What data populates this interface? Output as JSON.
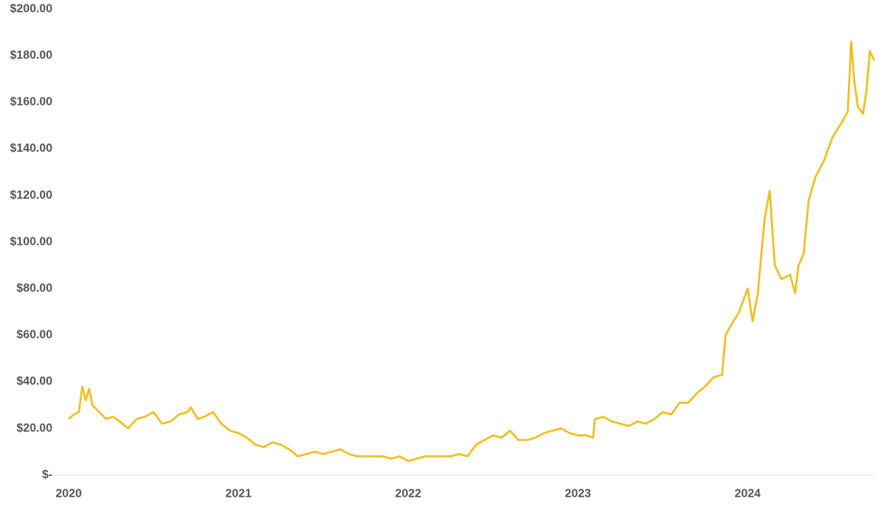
{
  "chart_data": {
    "type": "line",
    "x": [
      2020.0,
      2020.03,
      2020.06,
      2020.08,
      2020.1,
      2020.12,
      2020.14,
      2020.18,
      2020.22,
      2020.26,
      2020.3,
      2020.35,
      2020.4,
      2020.45,
      2020.5,
      2020.55,
      2020.6,
      2020.65,
      2020.7,
      2020.72,
      2020.76,
      2020.8,
      2020.85,
      2020.9,
      2020.95,
      2021.0,
      2021.05,
      2021.1,
      2021.15,
      2021.2,
      2021.25,
      2021.3,
      2021.35,
      2021.4,
      2021.45,
      2021.5,
      2021.55,
      2021.6,
      2021.65,
      2021.7,
      2021.75,
      2021.8,
      2021.85,
      2021.9,
      2021.95,
      2022.0,
      2022.05,
      2022.1,
      2022.15,
      2022.2,
      2022.25,
      2022.3,
      2022.35,
      2022.4,
      2022.45,
      2022.5,
      2022.55,
      2022.6,
      2022.65,
      2022.7,
      2022.75,
      2022.8,
      2022.85,
      2022.9,
      2022.95,
      2023.0,
      2023.05,
      2023.09,
      2023.1,
      2023.15,
      2023.2,
      2023.25,
      2023.3,
      2023.35,
      2023.4,
      2023.45,
      2023.5,
      2023.55,
      2023.6,
      2023.65,
      2023.7,
      2023.75,
      2023.8,
      2023.85,
      2023.87,
      2023.9,
      2023.95,
      2024.0,
      2024.03,
      2024.06,
      2024.1,
      2024.13,
      2024.16,
      2024.2,
      2024.25,
      2024.28,
      2024.3,
      2024.33,
      2024.36,
      2024.4,
      2024.45,
      2024.5,
      2024.56,
      2024.59,
      2024.61,
      2024.63,
      2024.65,
      2024.68,
      2024.7,
      2024.72,
      2024.746
    ],
    "series": [
      {
        "color": "#f0be1c",
        "values": [
          24,
          26,
          27,
          38,
          32,
          37,
          30,
          27,
          24,
          25,
          23,
          20,
          24,
          25,
          27,
          22,
          23,
          26,
          27,
          29,
          24,
          25,
          27,
          22,
          19,
          18,
          16,
          13,
          12,
          14,
          13,
          11,
          8,
          9,
          10,
          9,
          10,
          11,
          9,
          8,
          8,
          8,
          8,
          7,
          8,
          6,
          7,
          8,
          8,
          8,
          8,
          9,
          8,
          13,
          15,
          17,
          16,
          19,
          15,
          15,
          16,
          18,
          19,
          20,
          18,
          17,
          17,
          16,
          24,
          25,
          23,
          22,
          21,
          23,
          22,
          24,
          27,
          26,
          31,
          31,
          35,
          38,
          42,
          43,
          60,
          64,
          70,
          80,
          66,
          78,
          110,
          122,
          90,
          84,
          86,
          78,
          90,
          95,
          118,
          128,
          135,
          145,
          152,
          156,
          186,
          168,
          158,
          155,
          165,
          182,
          178
        ]
      }
    ],
    "xlim": [
      2020,
      2024.746
    ],
    "xticks": [
      2020,
      2021,
      2022,
      2023,
      2024
    ],
    "ylim": [
      0,
      200
    ],
    "yticks": [
      {
        "value": 0,
        "label": "$-"
      },
      {
        "value": 20,
        "label": "$20.00"
      },
      {
        "value": 40,
        "label": "$40.00"
      },
      {
        "value": 60,
        "label": "$60.00"
      },
      {
        "value": 80,
        "label": "$80.00"
      },
      {
        "value": 100,
        "label": "$100.00"
      },
      {
        "value": 120,
        "label": "$120.00"
      },
      {
        "value": 140,
        "label": "$140.00"
      },
      {
        "value": 160,
        "label": "$160.00"
      },
      {
        "value": 180,
        "label": "$180.00"
      },
      {
        "value": 200,
        "label": "$200.00"
      }
    ]
  }
}
